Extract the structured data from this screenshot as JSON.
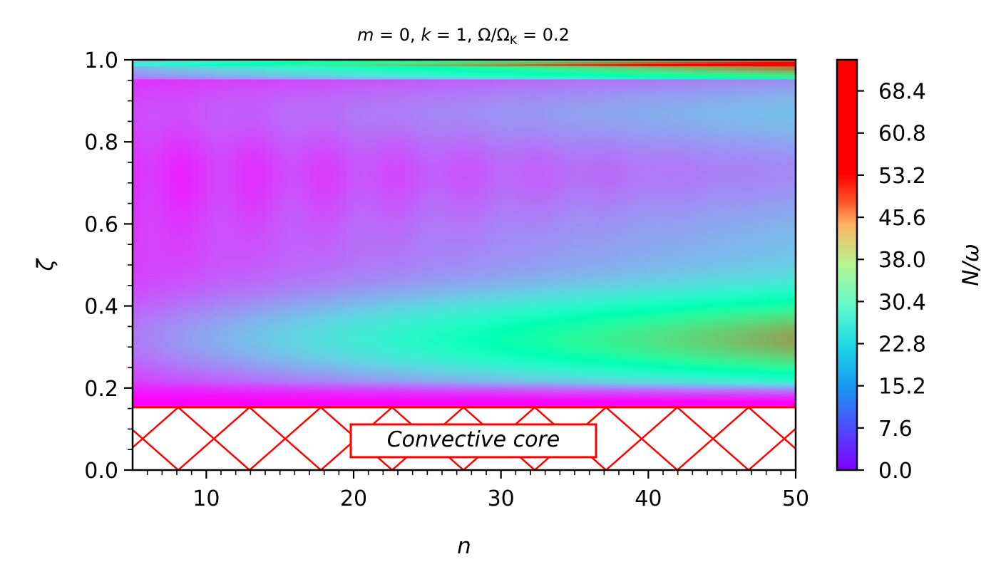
{
  "chart_data": {
    "type": "heatmap",
    "title": "m = 0, k = 1, Ω/Ω_K = 0.2",
    "title_parts": {
      "m": "m",
      "eq1": " = 0, ",
      "k": "k",
      "eq2": " = 1, Ω/Ω",
      "sub": "K",
      "eq3": " = 0.2"
    },
    "xlabel": "n",
    "ylabel": "ζ",
    "colorbar_label": "N/ω",
    "xlim": [
      5,
      50
    ],
    "ylim": [
      0.0,
      1.0
    ],
    "x_ticks": [
      "10",
      "20",
      "30",
      "40",
      "50"
    ],
    "x_tick_values": [
      10,
      20,
      30,
      40,
      50
    ],
    "y_ticks": [
      "0.0",
      "0.2",
      "0.4",
      "0.6",
      "0.8",
      "1.0"
    ],
    "y_tick_values": [
      0.0,
      0.2,
      0.4,
      0.6,
      0.8,
      1.0
    ],
    "colorbar_ticks": [
      "0.0",
      "7.6",
      "15.2",
      "22.8",
      "30.4",
      "38.0",
      "45.6",
      "53.2",
      "60.8",
      "68.4"
    ],
    "colorbar_tick_values": [
      0.0,
      7.6,
      15.2,
      22.8,
      30.4,
      38.0,
      45.6,
      53.2,
      60.8,
      68.4
    ],
    "colorbar_range": [
      0,
      74
    ],
    "colormap": "rainbow",
    "convective_core": {
      "label": "Convective core",
      "zeta_max": 0.153,
      "hatch_color": "#ff0000"
    },
    "field_shape": {
      "peak_zeta": 0.31,
      "secondary_zeta": 0.985,
      "min_zeta": 0.7,
      "note_values": [
        {
          "n": 5,
          "zeta": 0.31,
          "N_over_omega": 12
        },
        {
          "n": 30,
          "zeta": 0.31,
          "N_over_omega": 28
        },
        {
          "n": 50,
          "zeta": 0.31,
          "N_over_omega": 40
        },
        {
          "n": 5,
          "zeta": 0.7,
          "N_over_omega": 2
        },
        {
          "n": 50,
          "zeta": 0.7,
          "N_over_omega": 17
        }
      ]
    }
  }
}
